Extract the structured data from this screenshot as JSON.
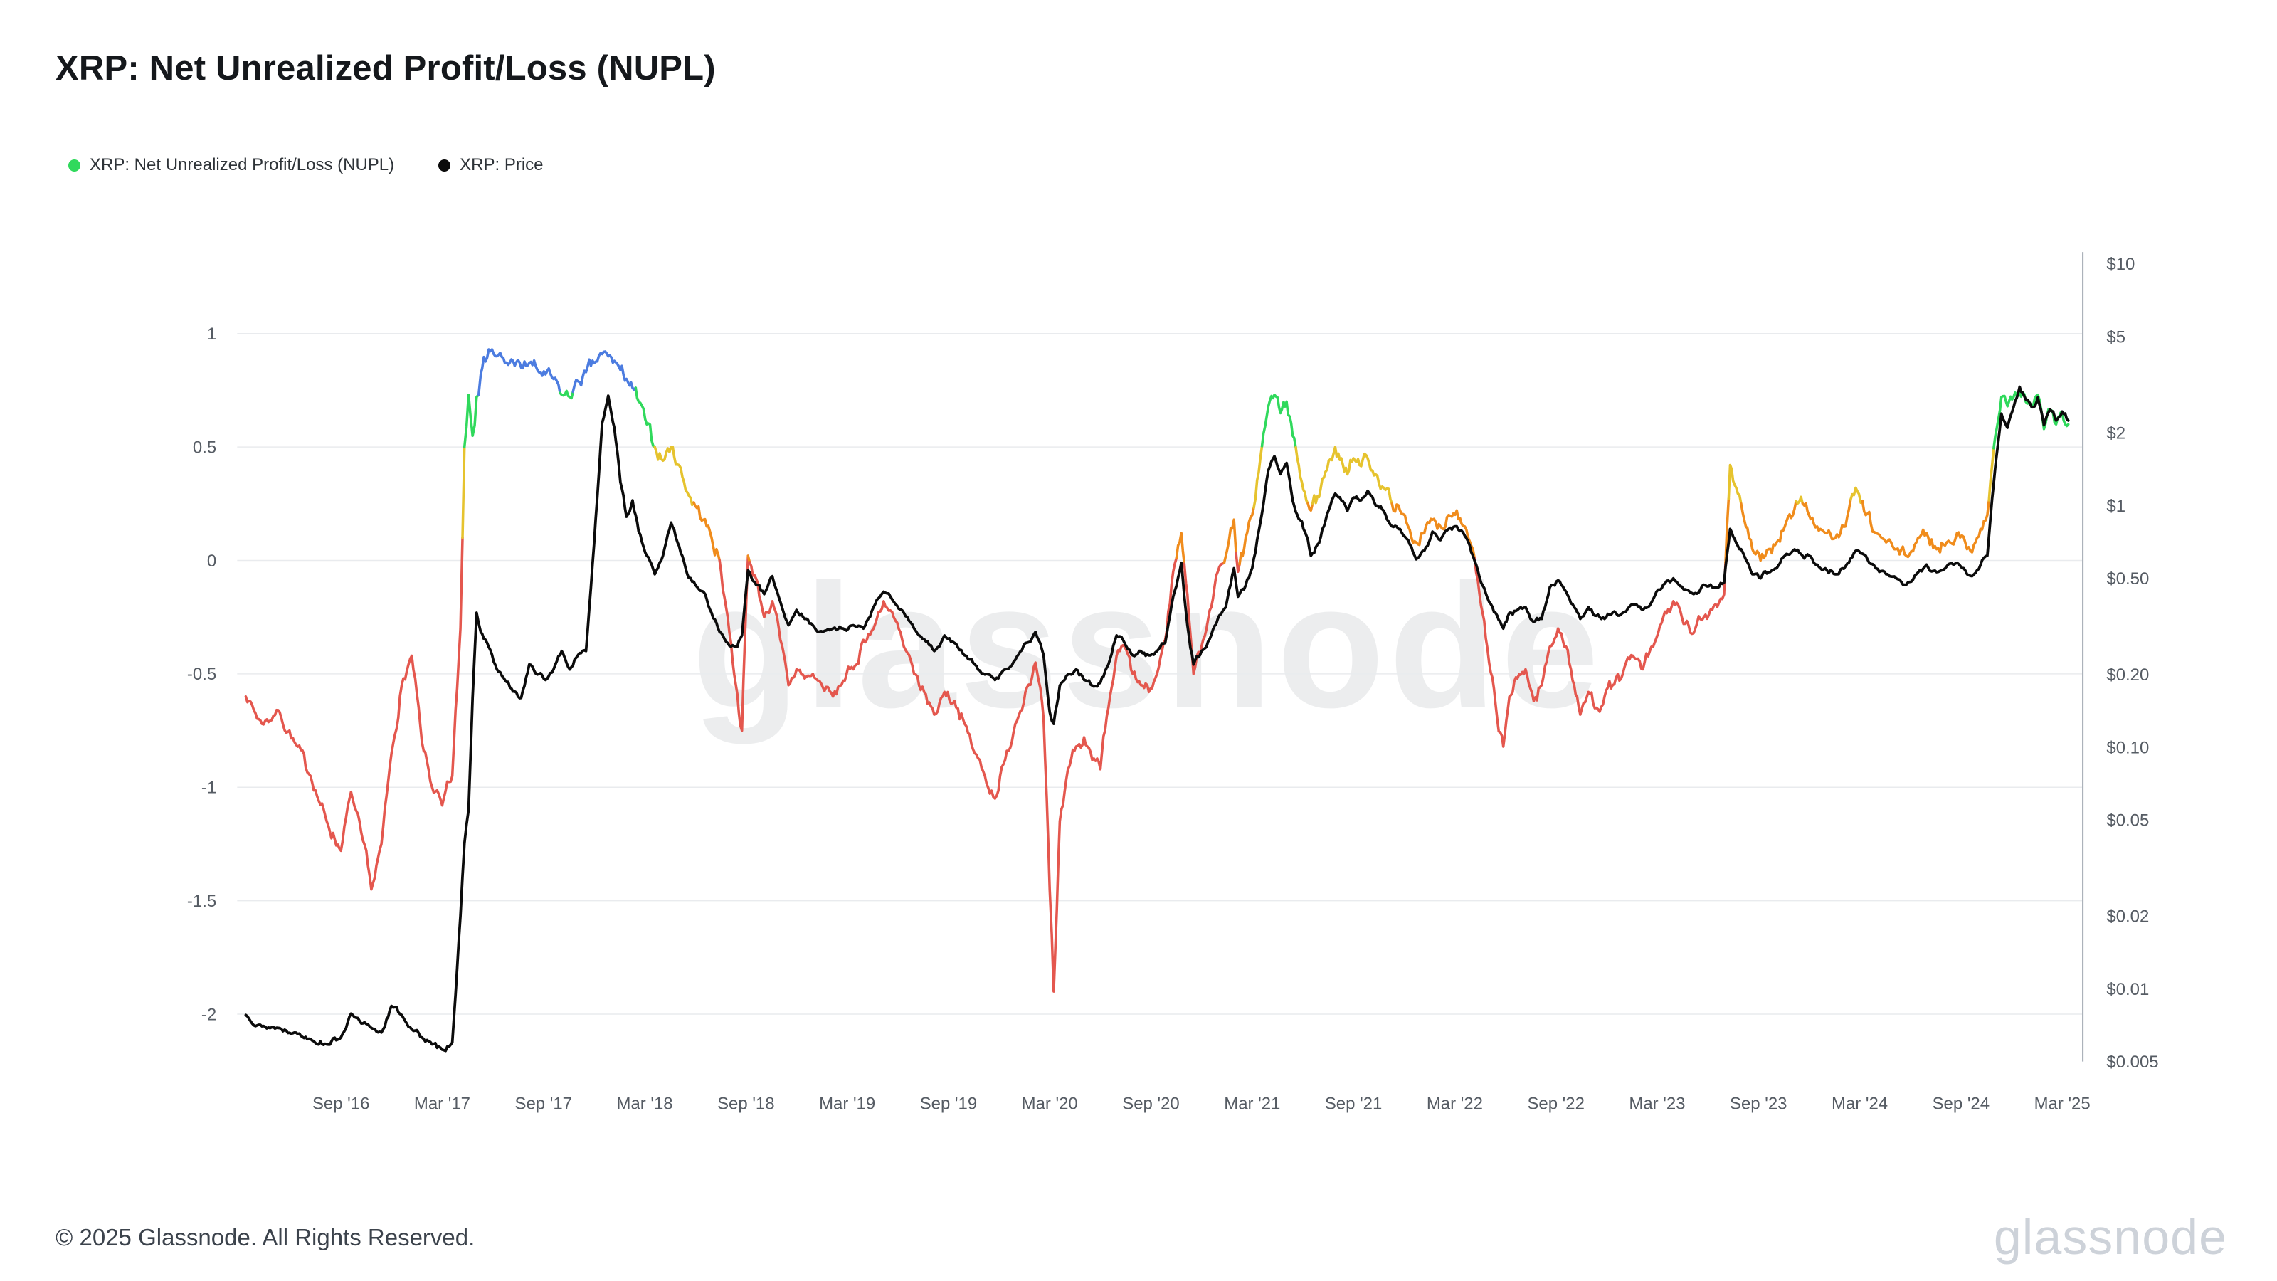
{
  "header": {
    "title": "XRP: Net Unrealized Profit/Loss (NUPL)"
  },
  "legend": [
    {
      "label": "XRP: Net Unrealized Profit/Loss (NUPL)",
      "color": "#30d95c"
    },
    {
      "label": "XRP: Price",
      "color": "#0b0b0b"
    }
  ],
  "watermark": "glassnode",
  "footer": {
    "copyright": "© 2025 Glassnode. All Rights Reserved.",
    "brand": "glassnode"
  },
  "chart_data": {
    "type": "line",
    "title": "XRP: Net Unrealized Profit/Loss (NUPL)",
    "grid": "horizontal",
    "legend_position": "top-left",
    "x_axis": {
      "ticks": [
        {
          "label": "Sep '16",
          "t": 2016.67
        },
        {
          "label": "Mar '17",
          "t": 2017.17
        },
        {
          "label": "Sep '17",
          "t": 2017.67
        },
        {
          "label": "Mar '18",
          "t": 2018.17
        },
        {
          "label": "Sep '18",
          "t": 2018.67
        },
        {
          "label": "Mar '19",
          "t": 2019.17
        },
        {
          "label": "Sep '19",
          "t": 2019.67
        },
        {
          "label": "Mar '20",
          "t": 2020.17
        },
        {
          "label": "Sep '20",
          "t": 2020.67
        },
        {
          "label": "Mar '21",
          "t": 2021.17
        },
        {
          "label": "Sep '21",
          "t": 2021.67
        },
        {
          "label": "Mar '22",
          "t": 2022.17
        },
        {
          "label": "Sep '22",
          "t": 2022.67
        },
        {
          "label": "Mar '23",
          "t": 2023.17
        },
        {
          "label": "Sep '23",
          "t": 2023.67
        },
        {
          "label": "Mar '24",
          "t": 2024.17
        },
        {
          "label": "Sep '24",
          "t": 2024.67
        },
        {
          "label": "Mar '25",
          "t": 2025.17
        }
      ]
    },
    "left_axis": {
      "series": "NUPL",
      "ticks": [
        {
          "label": "1",
          "value": 1
        },
        {
          "label": "0.5",
          "value": 0.5
        },
        {
          "label": "0",
          "value": 0
        },
        {
          "label": "-0.5",
          "value": -0.5
        },
        {
          "label": "-1",
          "value": -1
        },
        {
          "label": "-1.5",
          "value": -1.5
        },
        {
          "label": "-2",
          "value": -2
        }
      ]
    },
    "right_axis": {
      "series": "XRP: Price",
      "scale": "log",
      "ticks": [
        {
          "label": "$10",
          "value": 10
        },
        {
          "label": "$5",
          "value": 5
        },
        {
          "label": "$2",
          "value": 2
        },
        {
          "label": "$1",
          "value": 1
        },
        {
          "label": "$0.50",
          "value": 0.5
        },
        {
          "label": "$0.20",
          "value": 0.2
        },
        {
          "label": "$0.10",
          "value": 0.1
        },
        {
          "label": "$0.05",
          "value": 0.05
        },
        {
          "label": "$0.02",
          "value": 0.02
        },
        {
          "label": "$0.01",
          "value": 0.01
        },
        {
          "label": "$0.005",
          "value": 0.005
        }
      ]
    },
    "bands": [
      {
        "name": "blue",
        "min": 0.75,
        "color": "#4c7ce0"
      },
      {
        "name": "green",
        "min": 0.5,
        "color": "#30d95c"
      },
      {
        "name": "yellow",
        "min": 0.25,
        "color": "#e6c32e"
      },
      {
        "name": "orange",
        "min": 0,
        "color": "#f08c1c"
      },
      {
        "name": "red",
        "min": -999,
        "color": "#e4574e"
      }
    ],
    "series": {
      "nupl_name": "XRP: Net Unrealized Profit/Loss (NUPL)",
      "price_name": "XRP: Price",
      "price_color": "#0b0b0b",
      "x": [
        2016.2,
        2016.28,
        2016.36,
        2016.44,
        2016.52,
        2016.6,
        2016.67,
        2016.72,
        2016.77,
        2016.82,
        2016.87,
        2016.92,
        2016.97,
        2017.02,
        2017.07,
        2017.12,
        2017.17,
        2017.22,
        2017.26,
        2017.28,
        2017.3,
        2017.32,
        2017.34,
        2017.36,
        2017.4,
        2017.44,
        2017.48,
        2017.52,
        2017.56,
        2017.6,
        2017.64,
        2017.68,
        2017.72,
        2017.76,
        2017.8,
        2017.84,
        2017.88,
        2017.92,
        2017.96,
        2017.99,
        2018.02,
        2018.05,
        2018.08,
        2018.11,
        2018.14,
        2018.18,
        2018.22,
        2018.26,
        2018.3,
        2018.34,
        2018.38,
        2018.42,
        2018.46,
        2018.5,
        2018.54,
        2018.58,
        2018.62,
        2018.65,
        2018.68,
        2018.72,
        2018.76,
        2018.8,
        2018.84,
        2018.88,
        2018.92,
        2018.96,
        2019.0,
        2019.05,
        2019.1,
        2019.15,
        2019.2,
        2019.25,
        2019.3,
        2019.35,
        2019.4,
        2019.45,
        2019.5,
        2019.55,
        2019.6,
        2019.65,
        2019.7,
        2019.75,
        2019.8,
        2019.85,
        2019.9,
        2019.95,
        2020.0,
        2020.05,
        2020.1,
        2020.14,
        2020.17,
        2020.19,
        2020.22,
        2020.26,
        2020.3,
        2020.34,
        2020.38,
        2020.42,
        2020.46,
        2020.5,
        2020.54,
        2020.58,
        2020.62,
        2020.66,
        2020.7,
        2020.74,
        2020.78,
        2020.82,
        2020.85,
        2020.88,
        2020.92,
        2020.96,
        2021.0,
        2021.04,
        2021.08,
        2021.1,
        2021.13,
        2021.17,
        2021.21,
        2021.25,
        2021.28,
        2021.31,
        2021.34,
        2021.37,
        2021.4,
        2021.43,
        2021.46,
        2021.5,
        2021.54,
        2021.58,
        2021.61,
        2021.64,
        2021.67,
        2021.7,
        2021.74,
        2021.78,
        2021.82,
        2021.86,
        2021.9,
        2021.94,
        2021.98,
        2022.02,
        2022.06,
        2022.1,
        2022.14,
        2022.18,
        2022.22,
        2022.26,
        2022.3,
        2022.34,
        2022.38,
        2022.41,
        2022.44,
        2022.48,
        2022.52,
        2022.56,
        2022.6,
        2022.64,
        2022.68,
        2022.72,
        2022.76,
        2022.79,
        2022.83,
        2022.87,
        2022.91,
        2022.95,
        2023.0,
        2023.05,
        2023.1,
        2023.15,
        2023.2,
        2023.25,
        2023.3,
        2023.35,
        2023.4,
        2023.45,
        2023.5,
        2023.53,
        2023.56,
        2023.6,
        2023.64,
        2023.68,
        2023.72,
        2023.76,
        2023.8,
        2023.84,
        2023.88,
        2023.92,
        2023.96,
        2024.0,
        2024.05,
        2024.1,
        2024.15,
        2024.2,
        2024.25,
        2024.3,
        2024.35,
        2024.4,
        2024.45,
        2024.5,
        2024.55,
        2024.6,
        2024.65,
        2024.7,
        2024.75,
        2024.8,
        2024.84,
        2024.87,
        2024.9,
        2024.93,
        2024.96,
        2024.99,
        2025.02,
        2025.05,
        2025.08,
        2025.11,
        2025.14,
        2025.17,
        2025.2
      ],
      "nupl": [
        -0.6,
        -0.72,
        -0.66,
        -0.8,
        -0.95,
        -1.15,
        -1.28,
        -1.02,
        -1.2,
        -1.45,
        -1.25,
        -0.85,
        -0.55,
        -0.42,
        -0.8,
        -1.0,
        -1.08,
        -0.95,
        -0.3,
        0.5,
        0.73,
        0.55,
        0.72,
        0.82,
        0.93,
        0.9,
        0.87,
        0.88,
        0.85,
        0.87,
        0.84,
        0.82,
        0.8,
        0.73,
        0.72,
        0.79,
        0.83,
        0.87,
        0.91,
        0.9,
        0.88,
        0.84,
        0.8,
        0.76,
        0.7,
        0.6,
        0.5,
        0.44,
        0.5,
        0.42,
        0.3,
        0.24,
        0.18,
        0.1,
        0.0,
        -0.25,
        -0.55,
        -0.75,
        0.02,
        -0.08,
        -0.25,
        -0.18,
        -0.35,
        -0.55,
        -0.48,
        -0.52,
        -0.5,
        -0.56,
        -0.6,
        -0.53,
        -0.48,
        -0.35,
        -0.3,
        -0.18,
        -0.25,
        -0.38,
        -0.5,
        -0.58,
        -0.68,
        -0.58,
        -0.62,
        -0.72,
        -0.85,
        -0.95,
        -1.05,
        -0.88,
        -0.72,
        -0.58,
        -0.45,
        -0.7,
        -1.45,
        -1.9,
        -1.15,
        -0.92,
        -0.82,
        -0.78,
        -0.88,
        -0.92,
        -0.65,
        -0.42,
        -0.38,
        -0.5,
        -0.55,
        -0.58,
        -0.5,
        -0.35,
        -0.05,
        0.12,
        -0.15,
        -0.5,
        -0.38,
        -0.22,
        -0.05,
        0.02,
        0.18,
        -0.05,
        0.05,
        0.2,
        0.45,
        0.68,
        0.73,
        0.65,
        0.7,
        0.55,
        0.42,
        0.3,
        0.22,
        0.28,
        0.4,
        0.5,
        0.45,
        0.38,
        0.45,
        0.42,
        0.45,
        0.38,
        0.32,
        0.25,
        0.22,
        0.15,
        0.08,
        0.12,
        0.18,
        0.15,
        0.2,
        0.22,
        0.15,
        0.05,
        -0.2,
        -0.45,
        -0.7,
        -0.82,
        -0.6,
        -0.52,
        -0.48,
        -0.62,
        -0.55,
        -0.38,
        -0.3,
        -0.38,
        -0.55,
        -0.68,
        -0.58,
        -0.65,
        -0.6,
        -0.55,
        -0.5,
        -0.42,
        -0.48,
        -0.38,
        -0.25,
        -0.18,
        -0.28,
        -0.32,
        -0.25,
        -0.2,
        -0.15,
        0.42,
        0.32,
        0.18,
        0.05,
        0.0,
        0.05,
        0.08,
        0.15,
        0.2,
        0.28,
        0.2,
        0.15,
        0.12,
        0.1,
        0.15,
        0.32,
        0.2,
        0.12,
        0.08,
        0.05,
        0.02,
        0.08,
        0.12,
        0.05,
        0.08,
        0.12,
        0.05,
        0.1,
        0.2,
        0.55,
        0.72,
        0.68,
        0.72,
        0.74,
        0.7,
        0.68,
        0.73,
        0.58,
        0.66,
        0.6,
        0.65,
        0.6
      ],
      "price": [
        0.0078,
        0.007,
        0.0069,
        0.0066,
        0.0062,
        0.0059,
        0.0063,
        0.0079,
        0.0072,
        0.0069,
        0.0066,
        0.0085,
        0.0078,
        0.0068,
        0.0063,
        0.0059,
        0.0056,
        0.006,
        0.02,
        0.04,
        0.055,
        0.16,
        0.36,
        0.3,
        0.26,
        0.21,
        0.19,
        0.17,
        0.16,
        0.22,
        0.2,
        0.19,
        0.21,
        0.25,
        0.21,
        0.24,
        0.25,
        0.7,
        2.2,
        2.85,
        2.1,
        1.25,
        0.9,
        1.05,
        0.78,
        0.62,
        0.52,
        0.62,
        0.85,
        0.68,
        0.52,
        0.47,
        0.44,
        0.36,
        0.3,
        0.27,
        0.26,
        0.29,
        0.54,
        0.47,
        0.43,
        0.51,
        0.4,
        0.32,
        0.37,
        0.34,
        0.32,
        0.3,
        0.31,
        0.31,
        0.32,
        0.31,
        0.38,
        0.44,
        0.4,
        0.36,
        0.31,
        0.28,
        0.25,
        0.29,
        0.27,
        0.24,
        0.22,
        0.2,
        0.19,
        0.21,
        0.23,
        0.27,
        0.3,
        0.24,
        0.14,
        0.125,
        0.18,
        0.2,
        0.21,
        0.19,
        0.18,
        0.185,
        0.22,
        0.29,
        0.27,
        0.24,
        0.25,
        0.24,
        0.25,
        0.27,
        0.42,
        0.58,
        0.32,
        0.22,
        0.25,
        0.28,
        0.34,
        0.38,
        0.55,
        0.42,
        0.45,
        0.55,
        0.85,
        1.4,
        1.6,
        1.35,
        1.5,
        1.05,
        0.88,
        0.78,
        0.62,
        0.7,
        0.92,
        1.12,
        1.05,
        0.95,
        1.08,
        1.05,
        1.15,
        1.0,
        0.95,
        0.82,
        0.8,
        0.72,
        0.6,
        0.65,
        0.78,
        0.72,
        0.8,
        0.82,
        0.75,
        0.62,
        0.48,
        0.4,
        0.35,
        0.31,
        0.36,
        0.37,
        0.38,
        0.33,
        0.34,
        0.46,
        0.49,
        0.44,
        0.38,
        0.34,
        0.38,
        0.35,
        0.34,
        0.36,
        0.36,
        0.39,
        0.37,
        0.41,
        0.47,
        0.5,
        0.45,
        0.43,
        0.47,
        0.46,
        0.48,
        0.8,
        0.7,
        0.62,
        0.52,
        0.5,
        0.53,
        0.55,
        0.62,
        0.65,
        0.63,
        0.62,
        0.57,
        0.55,
        0.52,
        0.56,
        0.65,
        0.62,
        0.55,
        0.52,
        0.5,
        0.47,
        0.52,
        0.57,
        0.53,
        0.56,
        0.58,
        0.52,
        0.54,
        0.62,
        1.45,
        2.4,
        2.1,
        2.55,
        3.1,
        2.75,
        2.55,
        2.8,
        2.15,
        2.5,
        2.25,
        2.45,
        2.25
      ]
    }
  }
}
